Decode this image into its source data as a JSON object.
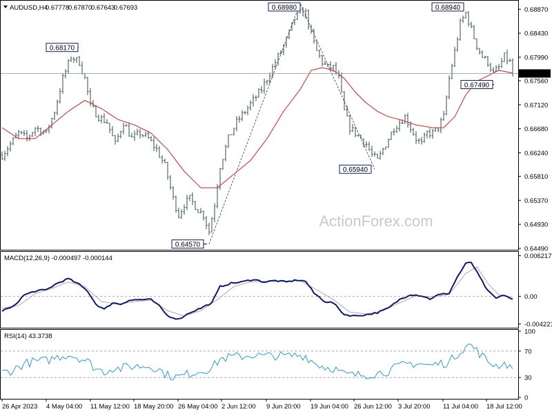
{
  "chart_data": [
    {
      "type": "candlestick",
      "header": {
        "symbol": "AUDUSD,H4",
        "values": [
          "0.67778",
          "0.67870",
          "0.67643",
          "0.67693"
        ]
      },
      "watermark": "ActionForex.com",
      "price_labels": [
        "0.68870",
        "0.68430",
        "0.67990",
        "0.67560",
        "0.67120",
        "0.66680",
        "0.66240",
        "0.65810",
        "0.65370",
        "0.64930",
        "0.64490"
      ],
      "ylim": [
        0.6449,
        0.69
      ],
      "current_price": "0.67693",
      "pivot_labels": [
        {
          "text": "0.68170",
          "value": 0.6817
        },
        {
          "text": "0.64570",
          "value": 0.6457
        },
        {
          "text": "0.68980",
          "value": 0.6898
        },
        {
          "text": "0.65940",
          "value": 0.6594
        },
        {
          "text": "0.68940",
          "value": 0.6894
        },
        {
          "text": "0.67490",
          "value": 0.6749
        }
      ],
      "swing_points": [
        {
          "bar": 75,
          "value": 0.6457
        },
        {
          "bar": 108,
          "value": 0.6898
        },
        {
          "bar": 135,
          "value": 0.6594
        }
      ],
      "series": [
        {
          "name": "price",
          "color": "#2f4f4f"
        },
        {
          "name": "moving-average",
          "color": "#d62020"
        }
      ],
      "x_labels": [
        "26 Apr 2023",
        "4 May 04:00",
        "11 May 12:00",
        "18 May 20:00",
        "26 May 04:00",
        "2 Jun 12:00",
        "9 Jun 20:00",
        "19 Jun 04:00",
        "26 Jun 12:00",
        "3 Jul 20:00",
        "11 Jul 04:00",
        "18 Jul 12:00"
      ],
      "keypoints": [
        [
          0,
          0.662
        ],
        [
          3,
          0.664
        ],
        [
          6,
          0.666
        ],
        [
          9,
          0.665
        ],
        [
          12,
          0.667
        ],
        [
          16,
          0.666
        ],
        [
          19,
          0.67
        ],
        [
          22,
          0.676
        ],
        [
          25,
          0.68
        ],
        [
          28,
          0.679
        ],
        [
          30,
          0.676
        ],
        [
          32,
          0.671
        ],
        [
          35,
          0.669
        ],
        [
          38,
          0.668
        ],
        [
          41,
          0.664
        ],
        [
          44,
          0.668
        ],
        [
          47,
          0.665
        ],
        [
          50,
          0.666
        ],
        [
          53,
          0.665
        ],
        [
          56,
          0.663
        ],
        [
          59,
          0.66
        ],
        [
          62,
          0.654
        ],
        [
          64,
          0.651
        ],
        [
          66,
          0.653
        ],
        [
          68,
          0.654
        ],
        [
          71,
          0.652
        ],
        [
          73,
          0.651
        ],
        [
          75,
          0.648
        ],
        [
          77,
          0.653
        ],
        [
          79,
          0.66
        ],
        [
          82,
          0.665
        ],
        [
          85,
          0.668
        ],
        [
          88,
          0.67
        ],
        [
          91,
          0.672
        ],
        [
          94,
          0.674
        ],
        [
          97,
          0.677
        ],
        [
          100,
          0.68
        ],
        [
          103,
          0.683
        ],
        [
          106,
          0.687
        ],
        [
          108,
          0.688
        ],
        [
          110,
          0.688
        ],
        [
          112,
          0.684
        ],
        [
          114,
          0.681
        ],
        [
          116,
          0.679
        ],
        [
          118,
          0.678
        ],
        [
          120,
          0.678
        ],
        [
          122,
          0.676
        ],
        [
          124,
          0.67
        ],
        [
          126,
          0.667
        ],
        [
          128,
          0.666
        ],
        [
          130,
          0.665
        ],
        [
          132,
          0.664
        ],
        [
          134,
          0.662
        ],
        [
          136,
          0.661
        ],
        [
          138,
          0.663
        ],
        [
          140,
          0.665
        ],
        [
          142,
          0.667
        ],
        [
          144,
          0.668
        ],
        [
          146,
          0.669
        ],
        [
          148,
          0.667
        ],
        [
          150,
          0.665
        ],
        [
          152,
          0.664
        ],
        [
          154,
          0.666
        ],
        [
          156,
          0.666
        ],
        [
          158,
          0.667
        ],
        [
          160,
          0.669
        ],
        [
          162,
          0.676
        ],
        [
          164,
          0.681
        ],
        [
          166,
          0.686
        ],
        [
          168,
          0.688
        ],
        [
          170,
          0.685
        ],
        [
          172,
          0.682
        ],
        [
          174,
          0.68
        ],
        [
          176,
          0.679
        ],
        [
          178,
          0.677
        ],
        [
          180,
          0.678
        ],
        [
          182,
          0.68
        ],
        [
          184,
          0.679
        ],
        [
          185,
          0.6769
        ]
      ],
      "ma_points": [
        [
          0,
          0.667
        ],
        [
          6,
          0.665
        ],
        [
          12,
          0.665
        ],
        [
          18,
          0.6675
        ],
        [
          24,
          0.67
        ],
        [
          30,
          0.672
        ],
        [
          36,
          0.6705
        ],
        [
          42,
          0.6685
        ],
        [
          48,
          0.6675
        ],
        [
          54,
          0.666
        ],
        [
          60,
          0.663
        ],
        [
          66,
          0.659
        ],
        [
          72,
          0.656
        ],
        [
          78,
          0.656
        ],
        [
          84,
          0.6585
        ],
        [
          90,
          0.661
        ],
        [
          96,
          0.665
        ],
        [
          102,
          0.67
        ],
        [
          108,
          0.674
        ],
        [
          112,
          0.6775
        ],
        [
          116,
          0.678
        ],
        [
          120,
          0.6775
        ],
        [
          124,
          0.676
        ],
        [
          128,
          0.6735
        ],
        [
          132,
          0.6715
        ],
        [
          136,
          0.67
        ],
        [
          140,
          0.669
        ],
        [
          144,
          0.6685
        ],
        [
          150,
          0.6675
        ],
        [
          156,
          0.667
        ],
        [
          160,
          0.667
        ],
        [
          164,
          0.669
        ],
        [
          168,
          0.673
        ],
        [
          172,
          0.6755
        ],
        [
          176,
          0.6765
        ],
        [
          180,
          0.6775
        ],
        [
          185,
          0.677
        ]
      ]
    },
    {
      "type": "line",
      "header": "MACD(12,26,9) -0.000497 -0.000144",
      "tick_labels": [
        "0.006217",
        "0.00",
        "-0.004221"
      ],
      "ylim": [
        -0.0047,
        0.0067
      ],
      "series": [
        {
          "name": "macd",
          "color": "#0a1a6e"
        },
        {
          "name": "signal",
          "color": "#c0a0a8"
        }
      ],
      "macd_points": [
        [
          0,
          -0.0022
        ],
        [
          4,
          -0.0016
        ],
        [
          8,
          0.0002
        ],
        [
          12,
          0.0008
        ],
        [
          16,
          0.001
        ],
        [
          20,
          0.002
        ],
        [
          24,
          0.0027
        ],
        [
          28,
          0.0018
        ],
        [
          31,
          0.0008
        ],
        [
          34,
          -0.0012
        ],
        [
          37,
          -0.002
        ],
        [
          40,
          -0.001
        ],
        [
          43,
          -0.0012
        ],
        [
          46,
          -0.0006
        ],
        [
          50,
          -0.0005
        ],
        [
          54,
          -0.0005
        ],
        [
          57,
          -0.0015
        ],
        [
          60,
          -0.003
        ],
        [
          64,
          -0.0035
        ],
        [
          68,
          -0.0025
        ],
        [
          72,
          -0.0018
        ],
        [
          76,
          -0.001
        ],
        [
          79,
          0.0015
        ],
        [
          83,
          0.002
        ],
        [
          87,
          0.0022
        ],
        [
          91,
          0.0026
        ],
        [
          95,
          0.0022
        ],
        [
          99,
          0.0024
        ],
        [
          103,
          0.0022
        ],
        [
          107,
          0.0025
        ],
        [
          110,
          0.0023
        ],
        [
          113,
          0.0005
        ],
        [
          117,
          -0.0008
        ],
        [
          120,
          -0.001
        ],
        [
          124,
          -0.0028
        ],
        [
          128,
          -0.003
        ],
        [
          132,
          -0.0028
        ],
        [
          136,
          -0.0025
        ],
        [
          140,
          -0.0018
        ],
        [
          144,
          -0.0005
        ],
        [
          148,
          0.0003
        ],
        [
          152,
          0.0001
        ],
        [
          155,
          -0.0004
        ],
        [
          158,
          0.0002
        ],
        [
          162,
          0.0005
        ],
        [
          165,
          0.003
        ],
        [
          168,
          0.005
        ],
        [
          170,
          0.0052
        ],
        [
          173,
          0.003
        ],
        [
          176,
          0.0008
        ],
        [
          179,
          -0.0003
        ],
        [
          182,
          0.0002
        ],
        [
          185,
          -0.0005
        ]
      ],
      "signal_points": [
        [
          0,
          -0.0018
        ],
        [
          6,
          -0.0014
        ],
        [
          12,
          0.0004
        ],
        [
          18,
          0.0012
        ],
        [
          24,
          0.0022
        ],
        [
          30,
          0.0015
        ],
        [
          36,
          -0.0008
        ],
        [
          42,
          -0.0012
        ],
        [
          48,
          -0.0008
        ],
        [
          54,
          -0.0006
        ],
        [
          60,
          -0.0022
        ],
        [
          66,
          -0.003
        ],
        [
          72,
          -0.0022
        ],
        [
          78,
          -0.0005
        ],
        [
          84,
          0.0015
        ],
        [
          90,
          0.0022
        ],
        [
          96,
          0.0023
        ],
        [
          102,
          0.0023
        ],
        [
          108,
          0.0024
        ],
        [
          114,
          0.001
        ],
        [
          120,
          -0.0005
        ],
        [
          126,
          -0.0024
        ],
        [
          132,
          -0.0027
        ],
        [
          138,
          -0.0022
        ],
        [
          144,
          -0.001
        ],
        [
          150,
          0.0001
        ],
        [
          156,
          -0.0001
        ],
        [
          162,
          0.0003
        ],
        [
          168,
          0.0035
        ],
        [
          172,
          0.0045
        ],
        [
          176,
          0.002
        ],
        [
          180,
          0.0002
        ],
        [
          185,
          -0.0001
        ]
      ]
    },
    {
      "type": "line",
      "header": "RSI(14) 43.3738",
      "tick_labels": [
        "100",
        "70",
        "30",
        "0"
      ],
      "ylim": [
        0,
        100
      ],
      "series": [
        {
          "name": "rsi",
          "color": "#1a8fd6"
        }
      ],
      "levels": [
        70,
        30
      ]
    }
  ]
}
